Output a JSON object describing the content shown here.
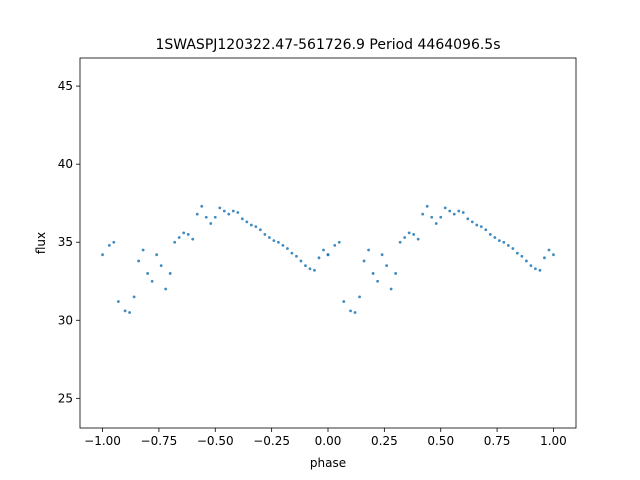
{
  "chart_data": {
    "type": "scatter",
    "title": "1SWASPJ120322.47-561726.9 Period 4464096.5s",
    "xlabel": "phase",
    "ylabel": "flux",
    "xlim": [
      -1.1,
      1.1
    ],
    "ylim": [
      23.1,
      46.8
    ],
    "xticks": [
      -1.0,
      -0.75,
      -0.5,
      -0.25,
      0.0,
      0.25,
      0.5,
      0.75,
      1.0
    ],
    "xtick_labels": [
      "−1.00",
      "−0.75",
      "−0.50",
      "−0.25",
      "0.00",
      "0.25",
      "0.50",
      "0.75",
      "1.00"
    ],
    "yticks": [
      25,
      30,
      35,
      40,
      45
    ],
    "ytick_labels": [
      "25",
      "30",
      "35",
      "40",
      "45"
    ],
    "grid": false,
    "marker_color": "#1f77b4",
    "series": [
      {
        "phase": [
          -1.0,
          -0.97,
          -0.95,
          -0.93,
          -0.9,
          -0.88,
          -0.86,
          -0.84,
          -0.82,
          -0.8,
          -0.78,
          -0.76,
          -0.74,
          -0.72,
          -0.7,
          -0.68,
          -0.66,
          -0.64,
          -0.62,
          -0.6,
          -0.58,
          -0.56,
          -0.54,
          -0.52,
          -0.5,
          -0.48,
          -0.46,
          -0.44,
          -0.42,
          -0.4,
          -0.38,
          -0.36,
          -0.34,
          -0.32,
          -0.3,
          -0.28,
          -0.26,
          -0.24,
          -0.22,
          -0.2,
          -0.18,
          -0.16,
          -0.14,
          -0.12,
          -0.1,
          -0.08,
          -0.06,
          -0.04,
          -0.02,
          0.0
        ],
        "flux": [
          34.2,
          34.8,
          35.0,
          31.2,
          30.6,
          30.5,
          31.5,
          33.8,
          34.5,
          33.0,
          32.5,
          34.2,
          33.5,
          32.0,
          33.0,
          35.0,
          35.3,
          35.6,
          35.5,
          35.2,
          36.8,
          37.3,
          36.6,
          36.2,
          36.6,
          37.2,
          37.0,
          36.8,
          37.0,
          36.9,
          36.5,
          36.3,
          36.1,
          36.0,
          35.8,
          35.5,
          35.3,
          35.1,
          35.0,
          34.8,
          34.6,
          34.3,
          34.1,
          33.8,
          33.5,
          33.3,
          33.2,
          34.0,
          34.5,
          34.2
        ]
      }
    ]
  }
}
